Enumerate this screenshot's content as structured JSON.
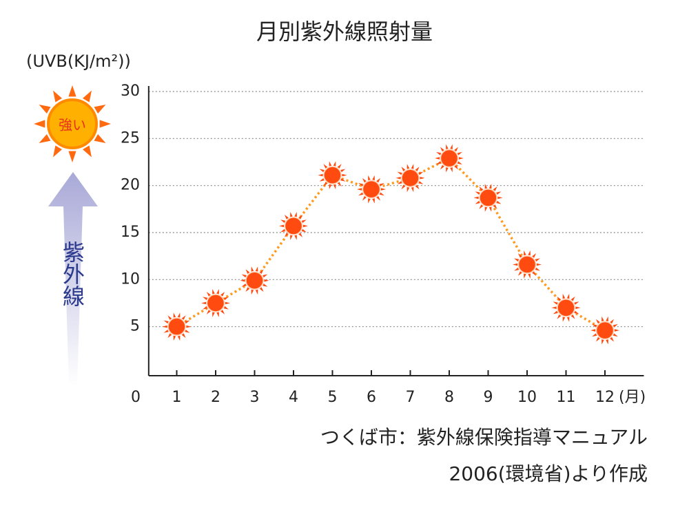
{
  "chart_data": {
    "type": "line",
    "title": "月別紫外線照射量",
    "y_label": "(UVB(KJ/m²))",
    "x_unit": "(月)",
    "x": [
      1,
      2,
      3,
      4,
      5,
      6,
      7,
      8,
      9,
      10,
      11,
      12
    ],
    "series": [
      {
        "color": "#ff4a10",
        "line_color": "#ff9a20",
        "values": [
          5.0,
          7.5,
          9.9,
          15.7,
          21.1,
          19.6,
          20.8,
          22.9,
          18.7,
          11.6,
          7.0,
          4.6
        ]
      }
    ],
    "xlim": [
      0.28,
      13
    ],
    "xticks": [
      0,
      1,
      2,
      3,
      4,
      5,
      6,
      7,
      8,
      9,
      10,
      11,
      12
    ],
    "ylim": [
      0,
      30
    ],
    "yticks": [
      5,
      10,
      15,
      20,
      25,
      30
    ],
    "grid": true,
    "annotations": {
      "sun": "強い",
      "arrow": "紫外線"
    },
    "source": [
      "つくば市：紫外線保険指導マニュアル",
      "2006(環境省)より作成"
    ]
  }
}
